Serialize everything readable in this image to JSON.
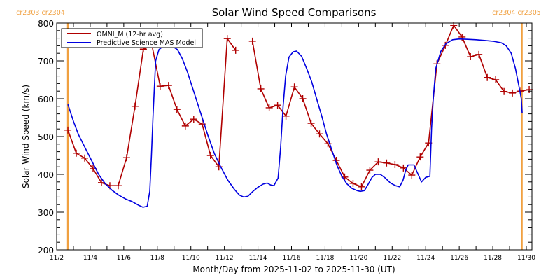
{
  "chart_data": {
    "type": "line",
    "title": "Solar Wind Speed Comparisons",
    "xlabel": "Month/Day from 2025-11-02 to 2025-11-30 (UT)",
    "ylabel": "Solar Wind Speed (km/s)",
    "xlim_day_of_nov": [
      2,
      30.35
    ],
    "ylim": [
      200,
      800
    ],
    "x_ticks": [
      {
        "day": 2,
        "label": "11/2"
      },
      {
        "day": 4,
        "label": "11/4"
      },
      {
        "day": 6,
        "label": "11/6"
      },
      {
        "day": 8,
        "label": "11/8"
      },
      {
        "day": 10,
        "label": "11/10"
      },
      {
        "day": 12,
        "label": "11/12"
      },
      {
        "day": 14,
        "label": "11/14"
      },
      {
        "day": 16,
        "label": "11/16"
      },
      {
        "day": 18,
        "label": "11/18"
      },
      {
        "day": 20,
        "label": "11/20"
      },
      {
        "day": 22,
        "label": "11/22"
      },
      {
        "day": 24,
        "label": "11/24"
      },
      {
        "day": 26,
        "label": "11/26"
      },
      {
        "day": 28,
        "label": "11/28"
      },
      {
        "day": 30,
        "label": "11/30"
      }
    ],
    "y_ticks": [
      200,
      300,
      400,
      500,
      600,
      700,
      800
    ],
    "y_minor_step": 20,
    "x_minor_step_days": 1,
    "grid": false,
    "legend_placement": "top-left",
    "carrington_markers": [
      {
        "day": 2.67,
        "label": "cr2303 cr2304",
        "color": "#f0a040"
      },
      {
        "day": 29.73,
        "label": "cr2304 cr2305",
        "color": "#f0a040"
      }
    ],
    "series": [
      {
        "name": "OMNI_M (12-hr avg)",
        "color": "#b00000",
        "marker": "plus",
        "segments": [
          [
            [
              2.67,
              517
            ],
            [
              3.17,
              456
            ],
            [
              3.67,
              443
            ],
            [
              4.17,
              415
            ],
            [
              4.67,
              378
            ],
            [
              5.17,
              370
            ],
            [
              5.67,
              370
            ],
            [
              6.17,
              444
            ],
            [
              6.67,
              580
            ],
            [
              7.17,
              731
            ],
            [
              7.67,
              743
            ],
            [
              8.17,
              633
            ],
            [
              8.67,
              635
            ],
            [
              9.17,
              572
            ],
            [
              9.67,
              528
            ],
            [
              10.17,
              546
            ],
            [
              10.67,
              533
            ],
            [
              11.17,
              450
            ],
            [
              11.67,
              420
            ],
            [
              12.17,
              759
            ],
            [
              12.67,
              728
            ]
          ],
          [
            [
              13.67,
              752
            ],
            [
              14.17,
              626
            ],
            [
              14.67,
              576
            ],
            [
              15.17,
              583
            ],
            [
              15.67,
              554
            ],
            [
              16.17,
              631
            ],
            [
              16.67,
              600
            ],
            [
              17.17,
              535
            ],
            [
              17.67,
              507
            ],
            [
              18.17,
              481
            ],
            [
              18.67,
              437
            ],
            [
              19.17,
              393
            ],
            [
              19.67,
              376
            ],
            [
              20.17,
              367
            ],
            [
              20.67,
              411
            ],
            [
              21.17,
              433
            ],
            [
              21.67,
              430
            ],
            [
              22.17,
              426
            ],
            [
              22.67,
              417
            ],
            [
              23.17,
              398
            ],
            [
              23.67,
              446
            ],
            [
              24.17,
              483
            ],
            [
              24.67,
              692
            ],
            [
              25.17,
              741
            ],
            [
              25.67,
              794
            ],
            [
              26.17,
              763
            ],
            [
              26.67,
              711
            ],
            [
              27.17,
              717
            ],
            [
              27.67,
              656
            ],
            [
              28.17,
              650
            ],
            [
              28.67,
              619
            ],
            [
              29.17,
              615
            ],
            [
              29.67,
              620
            ],
            [
              30.17,
              624
            ]
          ]
        ]
      },
      {
        "name": "Predictive Science MAS Model",
        "color": "#0000e0",
        "marker": "none",
        "segments": [
          [
            [
              2.67,
              585
            ],
            [
              3.0,
              540
            ],
            [
              3.3,
              505
            ],
            [
              3.7,
              470
            ],
            [
              4.1,
              435
            ],
            [
              4.5,
              400
            ],
            [
              4.9,
              375
            ],
            [
              5.3,
              358
            ],
            [
              5.7,
              345
            ],
            [
              6.1,
              335
            ],
            [
              6.5,
              328
            ],
            [
              6.9,
              318
            ],
            [
              7.15,
              313
            ],
            [
              7.4,
              316
            ],
            [
              7.55,
              355
            ],
            [
              7.65,
              450
            ],
            [
              7.75,
              560
            ],
            [
              7.9,
              700
            ],
            [
              8.1,
              730
            ],
            [
              8.4,
              740
            ],
            [
              8.8,
              741
            ],
            [
              9.2,
              730
            ],
            [
              9.5,
              705
            ],
            [
              9.8,
              670
            ],
            [
              10.2,
              615
            ],
            [
              10.6,
              560
            ],
            [
              11.0,
              505
            ],
            [
              11.4,
              455
            ],
            [
              11.8,
              418
            ],
            [
              12.2,
              385
            ],
            [
              12.6,
              360
            ],
            [
              12.9,
              345
            ],
            [
              13.15,
              340
            ],
            [
              13.4,
              342
            ],
            [
              13.7,
              355
            ],
            [
              14.0,
              366
            ],
            [
              14.3,
              374
            ],
            [
              14.55,
              377
            ],
            [
              14.75,
              372
            ],
            [
              14.95,
              370
            ],
            [
              15.2,
              390
            ],
            [
              15.35,
              470
            ],
            [
              15.5,
              580
            ],
            [
              15.65,
              660
            ],
            [
              15.85,
              710
            ],
            [
              16.1,
              724
            ],
            [
              16.3,
              726
            ],
            [
              16.6,
              712
            ],
            [
              16.9,
              680
            ],
            [
              17.2,
              645
            ],
            [
              17.5,
              600
            ],
            [
              17.8,
              555
            ],
            [
              18.1,
              505
            ],
            [
              18.4,
              465
            ],
            [
              18.7,
              425
            ],
            [
              19.0,
              395
            ],
            [
              19.3,
              375
            ],
            [
              19.6,
              363
            ],
            [
              19.9,
              357
            ],
            [
              20.1,
              355
            ],
            [
              20.35,
              357
            ],
            [
              20.55,
              372
            ],
            [
              20.8,
              392
            ],
            [
              21.0,
              400
            ],
            [
              21.3,
              400
            ],
            [
              21.6,
              390
            ],
            [
              21.9,
              377
            ],
            [
              22.2,
              370
            ],
            [
              22.45,
              367
            ],
            [
              22.65,
              385
            ],
            [
              22.8,
              410
            ],
            [
              22.95,
              425
            ],
            [
              23.3,
              425
            ],
            [
              23.5,
              405
            ],
            [
              23.75,
              380
            ],
            [
              24.0,
              392
            ],
            [
              24.25,
              395
            ],
            [
              24.35,
              520
            ],
            [
              24.45,
              600
            ],
            [
              24.6,
              680
            ],
            [
              24.9,
              725
            ],
            [
              25.2,
              745
            ],
            [
              25.6,
              756
            ],
            [
              26.0,
              758
            ],
            [
              26.5,
              757
            ],
            [
              27.0,
              756
            ],
            [
              27.5,
              754
            ],
            [
              28.0,
              752
            ],
            [
              28.5,
              748
            ],
            [
              28.8,
              740
            ],
            [
              29.1,
              720
            ],
            [
              29.35,
              680
            ],
            [
              29.55,
              635
            ],
            [
              29.7,
              600
            ],
            [
              29.75,
              563
            ]
          ]
        ]
      }
    ]
  }
}
